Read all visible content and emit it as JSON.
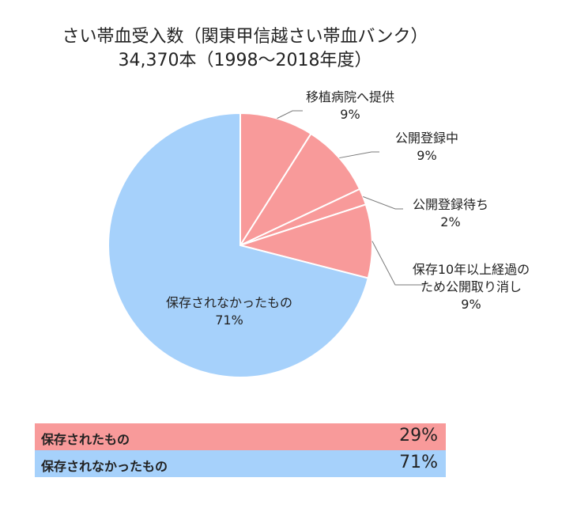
{
  "chart_data": {
    "type": "pie",
    "title": "さい帯血受入数（関東甲信越さい帯血バンク）",
    "subtitle": "34,370本（1998～2018年度）",
    "slices": [
      {
        "label": "移植病院へ提供",
        "value": 9,
        "pct_label": "9%",
        "color": "#f89a9a"
      },
      {
        "label": "公開登録中",
        "value": 9,
        "pct_label": "9%",
        "color": "#f89a9a"
      },
      {
        "label": "公開登録待ち",
        "value": 2,
        "pct_label": "2%",
        "color": "#f89a9a"
      },
      {
        "label": "保存10年以上経過の\nため公開取り消し",
        "value": 9,
        "pct_label": "9%",
        "color": "#f89a9a"
      },
      {
        "label": "保存されなかったもの",
        "value": 71,
        "pct_label": "71%",
        "color": "#a6d1fb"
      }
    ]
  },
  "summary": [
    {
      "label": "保存されたもの",
      "value": "29%",
      "color": "#f89a9a"
    },
    {
      "label": "保存されなかったもの",
      "value": "71%",
      "color": "#a6d1fb"
    }
  ]
}
